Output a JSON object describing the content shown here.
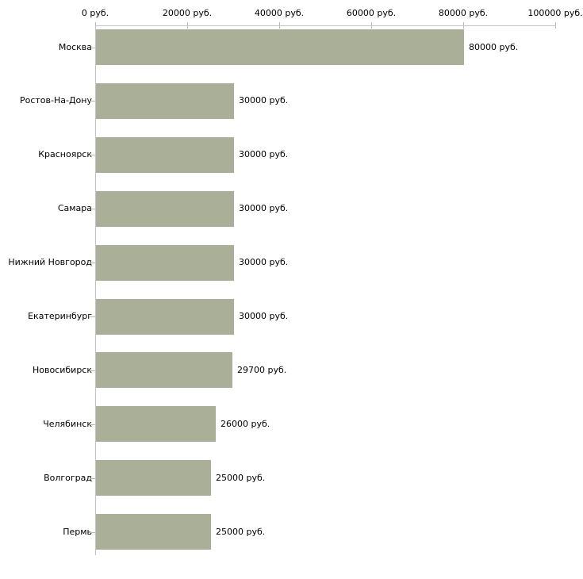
{
  "chart_data": {
    "type": "bar",
    "orientation": "horizontal",
    "title": "",
    "unit": "руб.",
    "categories": [
      "Москва",
      "Ростов-На-Дону",
      "Красноярск",
      "Самара",
      "Нижний Новгород",
      "Екатеринбург",
      "Новосибирск",
      "Челябинск",
      "Волгоград",
      "Пермь"
    ],
    "values": [
      80000,
      30000,
      30000,
      30000,
      30000,
      30000,
      29700,
      26000,
      25000,
      25000
    ],
    "value_labels": [
      "80000 руб.",
      "30000 руб.",
      "30000 руб.",
      "30000 руб.",
      "30000 руб.",
      "30000 руб.",
      "29700 руб.",
      "26000 руб.",
      "25000 руб.",
      "25000 руб."
    ],
    "x_axis": {
      "position": "top",
      "range": [
        0,
        100000
      ],
      "ticks": [
        0,
        20000,
        40000,
        60000,
        80000,
        100000
      ],
      "tick_labels": [
        "0 руб.",
        "20000 руб.",
        "40000 руб.",
        "60000 руб.",
        "80000 руб.",
        "100000 руб."
      ]
    },
    "legend": "none",
    "grid": "off",
    "colors": {
      "bar": "#a9b097",
      "axis_line": "#c3c3c3",
      "tick_mark": "#bcbf9f",
      "text": "#000000",
      "background": "#ffffff"
    }
  }
}
